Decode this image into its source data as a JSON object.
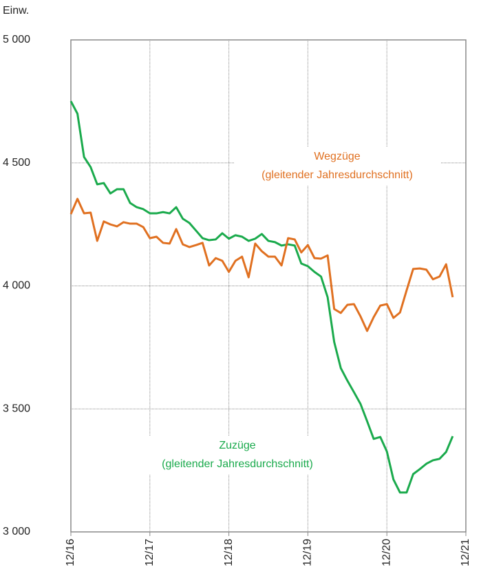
{
  "chart_data": {
    "type": "line",
    "y_unit_label": "Einw.",
    "x": [
      0,
      1,
      2,
      3,
      4,
      5,
      6,
      7,
      8,
      9,
      10,
      11,
      12,
      13,
      14,
      15,
      16,
      17,
      18,
      19,
      20,
      21,
      22,
      23,
      24,
      25,
      26,
      27,
      28,
      29,
      30,
      31,
      32,
      33,
      34,
      35,
      36,
      37,
      38,
      39,
      40,
      41,
      42,
      43,
      44,
      45,
      46,
      47,
      48,
      49,
      50,
      51,
      52,
      53,
      54,
      55,
      56,
      57,
      58
    ],
    "series": [
      {
        "name": "Zuzüge",
        "color": "#1aaa4c",
        "values": [
          4751,
          4700,
          4524,
          4483,
          4413,
          4418,
          4376,
          4393,
          4393,
          4337,
          4320,
          4312,
          4295,
          4295,
          4300,
          4295,
          4320,
          4273,
          4256,
          4225,
          4194,
          4186,
          4189,
          4214,
          4192,
          4206,
          4200,
          4183,
          4192,
          4211,
          4183,
          4178,
          4164,
          4169,
          4164,
          4091,
          4080,
          4057,
          4038,
          3954,
          3772,
          3666,
          3615,
          3568,
          3520,
          3450,
          3378,
          3386,
          3327,
          3213,
          3160,
          3160,
          3235,
          3255,
          3277,
          3291,
          3297,
          3325,
          3389
        ]
      },
      {
        "name": "Wegzüge",
        "color": "#e07020",
        "values": [
          4292,
          4354,
          4295,
          4298,
          4183,
          4262,
          4250,
          4242,
          4259,
          4253,
          4253,
          4239,
          4194,
          4200,
          4175,
          4172,
          4231,
          4169,
          4158,
          4166,
          4175,
          4083,
          4113,
          4102,
          4057,
          4102,
          4119,
          4035,
          4172,
          4141,
          4119,
          4119,
          4083,
          4194,
          4189,
          4136,
          4166,
          4113,
          4111,
          4124,
          3906,
          3890,
          3923,
          3926,
          3876,
          3817,
          3873,
          3920,
          3926,
          3870,
          3892,
          3982,
          4069,
          4071,
          4066,
          4027,
          4038,
          4088,
          3954
        ]
      }
    ],
    "annotations": [
      {
        "lines": [
          "Wegzüge",
          "(gleitender Jahresdurchschnitt)"
        ],
        "color": "#e07020"
      },
      {
        "lines": [
          "Zuzüge",
          "(gleitender Jahresdurchschnitt)"
        ],
        "color": "#1aaa4c"
      }
    ],
    "xlim": [
      0,
      60
    ],
    "xticks": [
      {
        "value": 0,
        "label": "12/16"
      },
      {
        "value": 12,
        "label": "12/17"
      },
      {
        "value": 24,
        "label": "12/18"
      },
      {
        "value": 36,
        "label": "12/19"
      },
      {
        "value": 48,
        "label": "12/20"
      },
      {
        "value": 60,
        "label": "12/21"
      }
    ],
    "ylim": [
      3000,
      5000
    ],
    "yticks": [
      {
        "value": 3000,
        "label": "3 000"
      },
      {
        "value": 3500,
        "label": "3 500"
      },
      {
        "value": 4000,
        "label": "4 000"
      },
      {
        "value": 4500,
        "label": "4 500"
      },
      {
        "value": 5000,
        "label": "5 000"
      }
    ],
    "grid": true
  }
}
